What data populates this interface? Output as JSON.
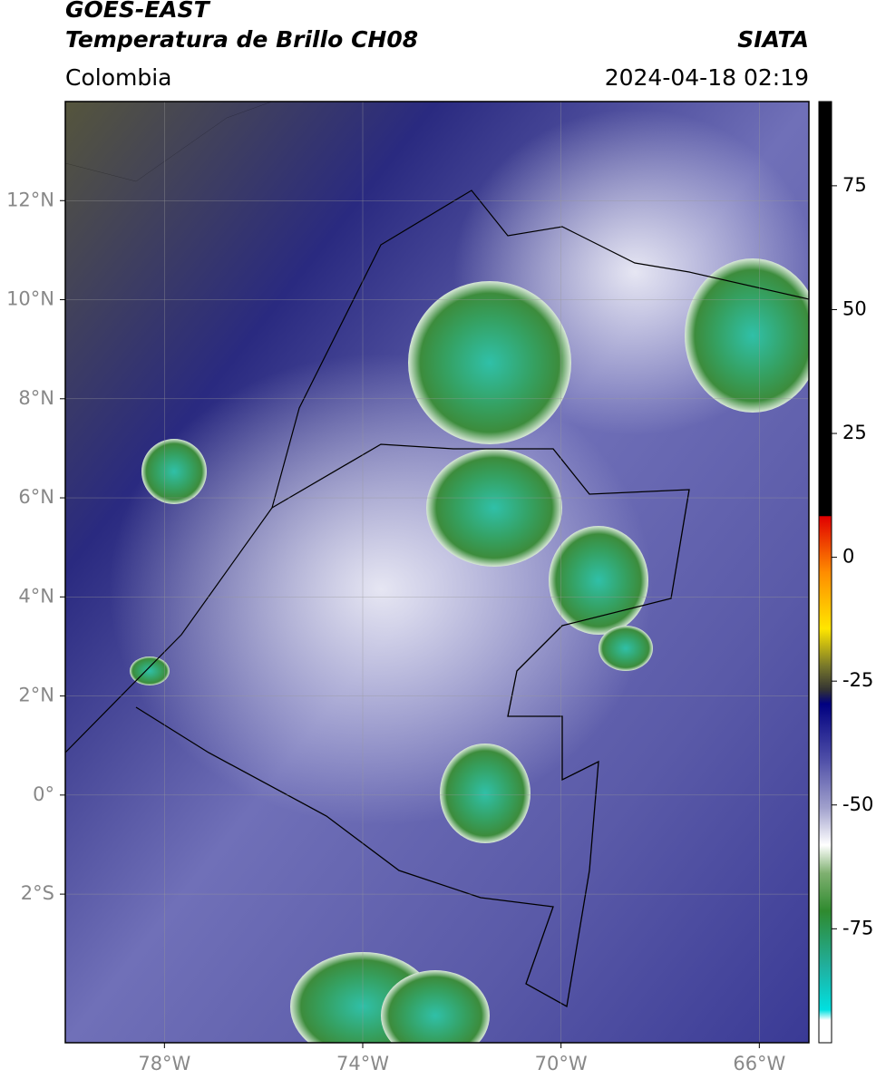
{
  "header": {
    "title": "GOES-EAST",
    "subtitle": "Temperatura de Brillo CH08",
    "region": "Colombia",
    "source": "SIATA",
    "datetime": "2024-04-18 02:19"
  },
  "map": {
    "extent": {
      "lon": [
        -80,
        -65
      ],
      "lat": [
        -5,
        14
      ]
    },
    "lon_ticks": [
      {
        "value": -78,
        "label": "78°W"
      },
      {
        "value": -74,
        "label": "74°W"
      },
      {
        "value": -70,
        "label": "70°W"
      },
      {
        "value": -66,
        "label": "66°W"
      }
    ],
    "lat_ticks": [
      {
        "value": 12,
        "label": "12°N"
      },
      {
        "value": 10,
        "label": "10°N"
      },
      {
        "value": 8,
        "label": "8°N"
      },
      {
        "value": 6,
        "label": "6°N"
      },
      {
        "value": 4,
        "label": "4°N"
      },
      {
        "value": 2,
        "label": "2°N"
      },
      {
        "value": 0,
        "label": "0°"
      },
      {
        "value": -2,
        "label": "2°S"
      }
    ],
    "grid": true
  },
  "colorbar": {
    "lim": [
      -98,
      92
    ],
    "ticks": [
      75,
      50,
      25,
      0,
      -25,
      -50,
      -75
    ]
  }
}
